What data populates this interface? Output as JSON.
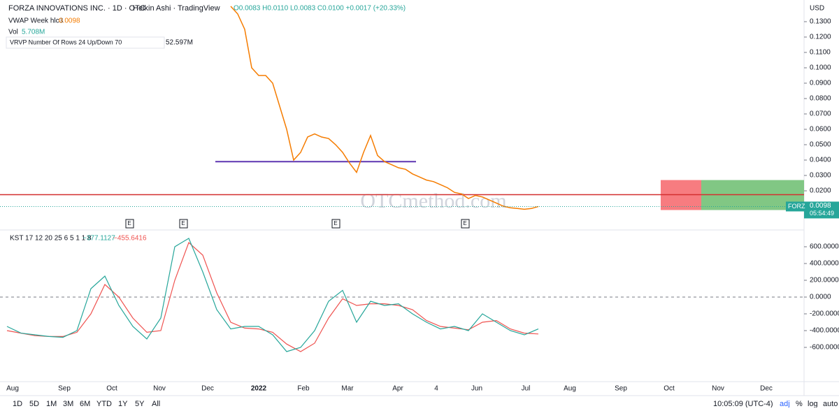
{
  "header": {
    "symbol": "FORZA INNOVATIONS INC. · 1D · OTC",
    "chart_style": "Heikin Ashi · TradingView",
    "ohlc": "O0.0083 H0.0110 L0.0083 C0.0100 +0.0017 (+20.33%)",
    "vwap_label": "VWAP Week hlc3",
    "vwap_value": "0.0098",
    "vol_label": "Vol",
    "vol_value": "5.708M",
    "vrvp_label": "VRVP Number Of Rows 24 Up/Down 70",
    "vrvp_value": "52.597M"
  },
  "currency": "USD",
  "price_axis": {
    "ticks": [
      {
        "value": 0.02,
        "label": "0.0200"
      },
      {
        "value": 0.03,
        "label": "0.0300"
      },
      {
        "value": 0.04,
        "label": "0.0400"
      },
      {
        "value": 0.05,
        "label": "0.0500"
      },
      {
        "value": 0.06,
        "label": "0.0600"
      },
      {
        "value": 0.07,
        "label": "0.0700"
      },
      {
        "value": 0.08,
        "label": "0.0800"
      },
      {
        "value": 0.09,
        "label": "0.0900"
      },
      {
        "value": 0.1,
        "label": "0.1000"
      },
      {
        "value": 0.11,
        "label": "0.1100"
      },
      {
        "value": 0.12,
        "label": "0.1200"
      },
      {
        "value": 0.13,
        "label": "0.1300"
      }
    ]
  },
  "last_price": {
    "ticker": "FORZ",
    "value": 0.0098,
    "label": "0.0098",
    "countdown": "05:54:49"
  },
  "price_series": {
    "name": "VWAP",
    "color": "#f57c00",
    "values": [
      0.14,
      0.135,
      0.125,
      0.1,
      0.095,
      0.095,
      0.09,
      0.075,
      0.06,
      0.04,
      0.045,
      0.055,
      0.057,
      0.055,
      0.054,
      0.05,
      0.045,
      0.038,
      0.032,
      0.045,
      0.056,
      0.043,
      0.039,
      0.037,
      0.035,
      0.034,
      0.031,
      0.029,
      0.027,
      0.026,
      0.024,
      0.022,
      0.019,
      0.018,
      0.015,
      0.017,
      0.016,
      0.014,
      0.012,
      0.01,
      0.009,
      0.0085,
      0.008,
      0.0085,
      0.0098
    ]
  },
  "levels": {
    "red_line": 0.0175,
    "purple_line": 0.039,
    "position_top": 0.027,
    "position_bottom": 0.0075
  },
  "watermark": "OTCmethod.com",
  "earnings_marker": "E",
  "kst": {
    "label": "KST 17 12 20 25 6 5 1 1 8",
    "kst_value": "−377.1127",
    "signal_value": "−455.6416",
    "ticks": [
      {
        "value": 600,
        "label": "600.0000"
      },
      {
        "value": 400,
        "label": "400.0000"
      },
      {
        "value": 200,
        "label": "200.0000"
      },
      {
        "value": 0,
        "label": "0.0000"
      },
      {
        "value": -200,
        "label": "-200.0000"
      },
      {
        "value": -400,
        "label": "-400.0000"
      },
      {
        "value": -600,
        "label": "-600.0000"
      }
    ],
    "kst_values": [
      -350,
      -430,
      -450,
      -470,
      -480,
      -400,
      100,
      250,
      -100,
      -350,
      -500,
      -250,
      600,
      700,
      300,
      -150,
      -380,
      -350,
      -350,
      -450,
      -650,
      -600,
      -400,
      -50,
      80,
      -300,
      -50,
      -100,
      -80,
      -200,
      -300,
      -380,
      -350,
      -400,
      -200,
      -300,
      -400,
      -450,
      -380
    ],
    "signal_values": [
      -400,
      -430,
      -460,
      -470,
      -470,
      -420,
      -200,
      150,
      0,
      -250,
      -420,
      -400,
      200,
      650,
      500,
      50,
      -300,
      -370,
      -380,
      -420,
      -560,
      -650,
      -550,
      -250,
      -20,
      -100,
      -80,
      -80,
      -100,
      -150,
      -280,
      -350,
      -370,
      -390,
      -300,
      -280,
      -380,
      -430,
      -440
    ]
  },
  "time_axis": [
    "Aug",
    "Sep",
    "Oct",
    "Nov",
    "Dec",
    "2022",
    "Feb",
    "Mar",
    "Apr",
    "4",
    "Jun",
    "Jul",
    "Aug",
    "Sep",
    "Oct",
    "Nov",
    "Dec"
  ],
  "toolbar": {
    "ranges": [
      "1D",
      "5D",
      "1M",
      "3M",
      "6M",
      "YTD",
      "1Y",
      "5Y",
      "All"
    ],
    "clock": "10:05:09 (UTC-4)",
    "options": [
      "adj",
      "%",
      "log",
      "auto"
    ]
  }
}
